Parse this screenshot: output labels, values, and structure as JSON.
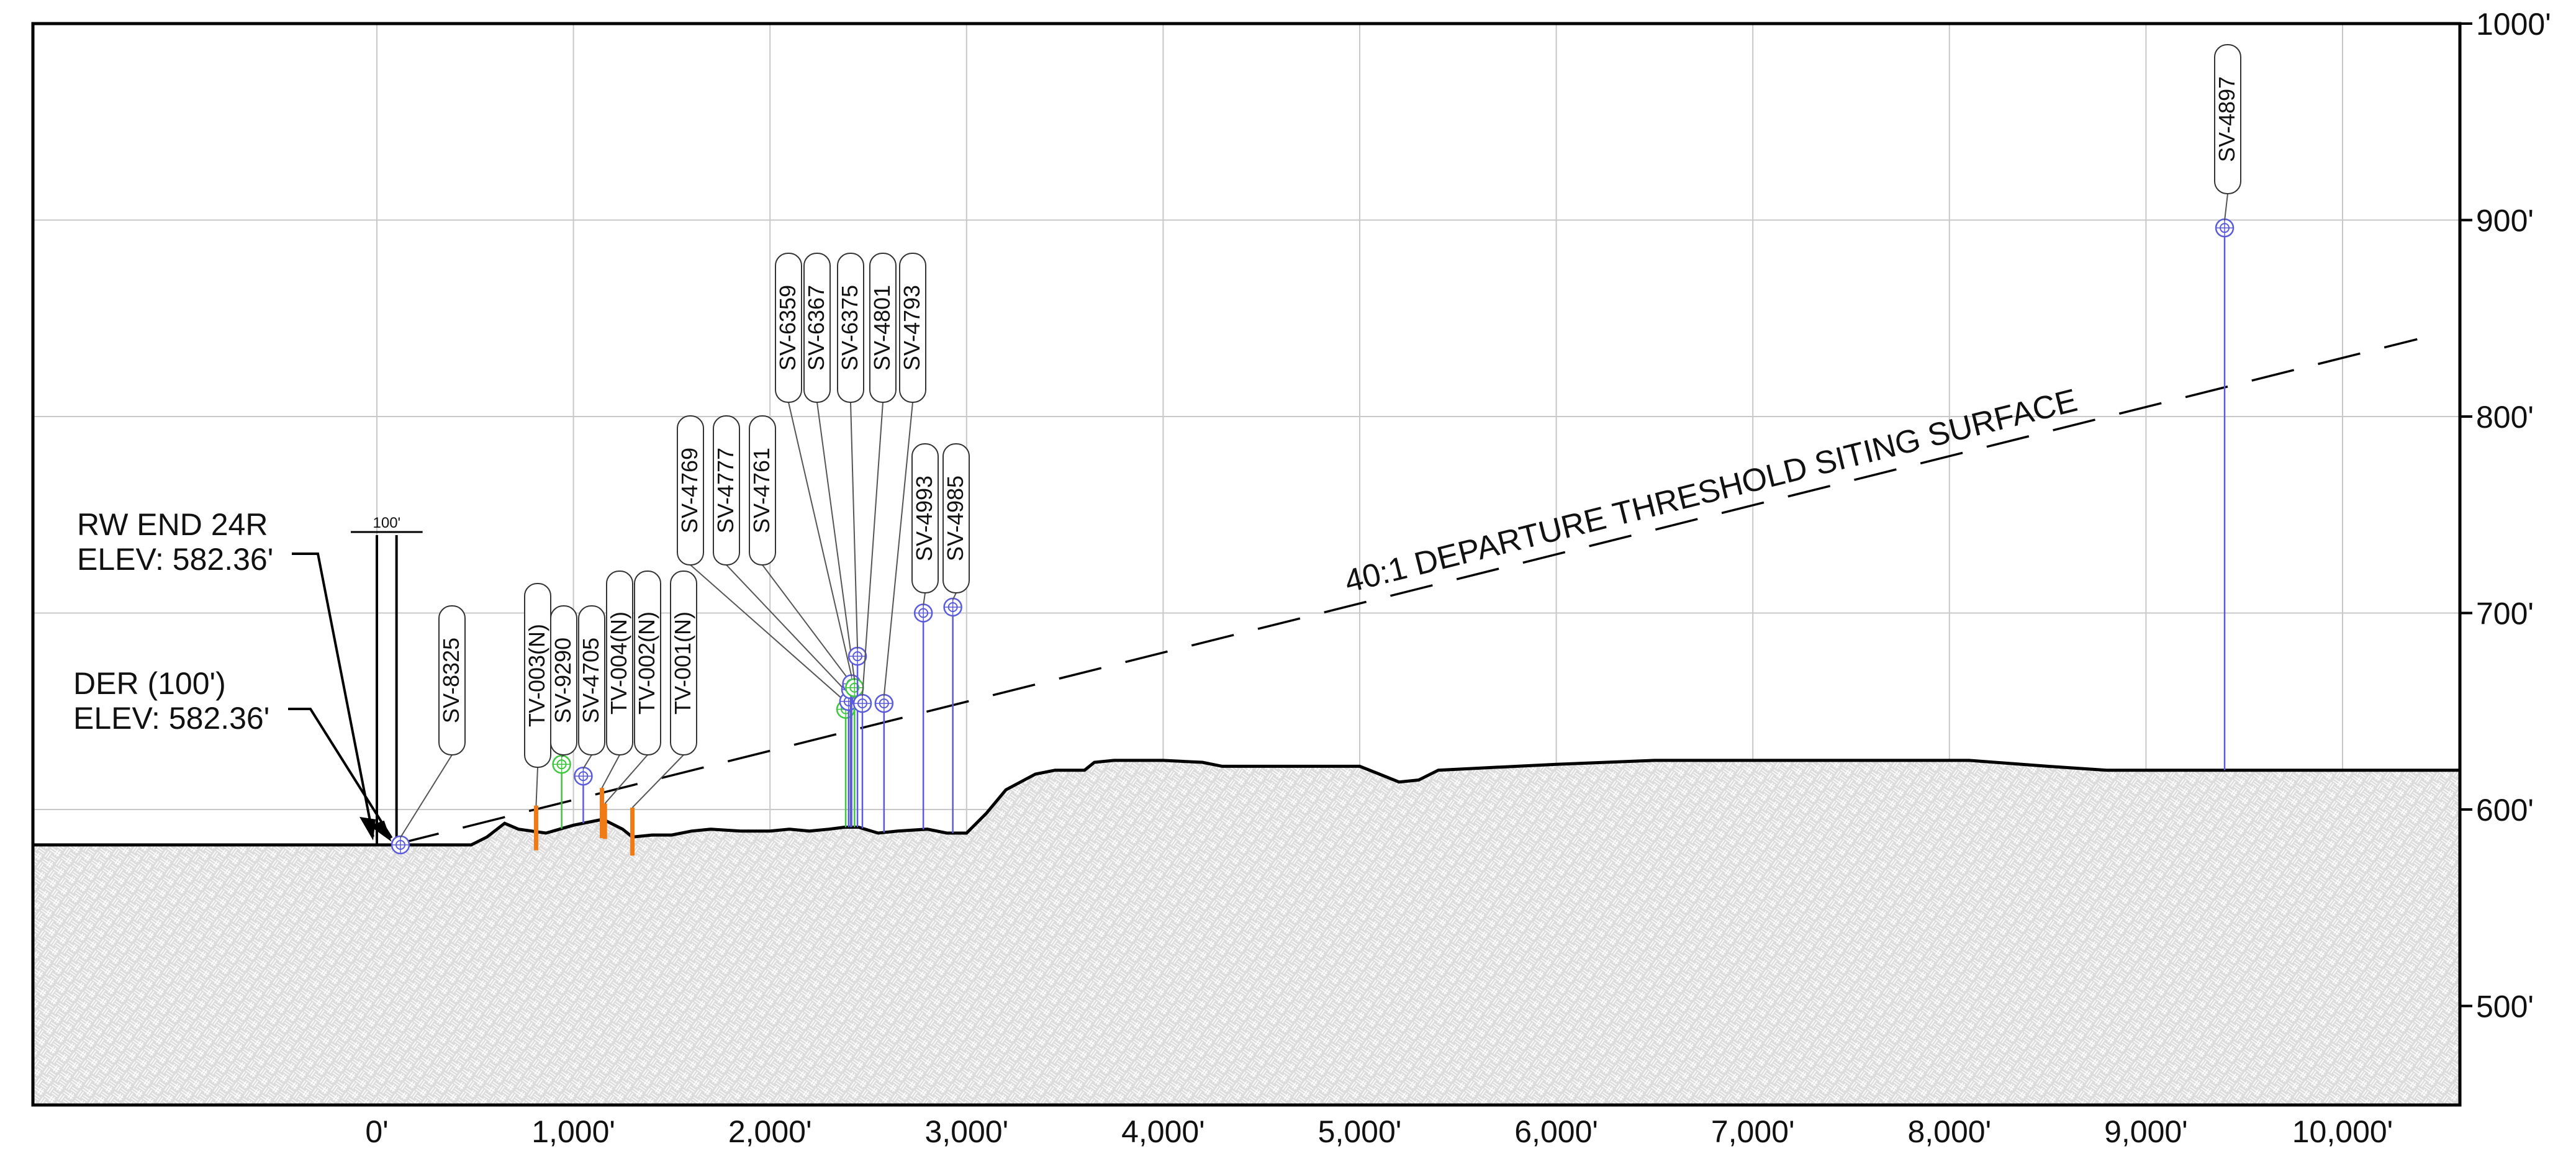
{
  "colors": {
    "frame": "#000000",
    "grid": "#c8c8c8",
    "ground_fill": "#dcdcdc",
    "ground_hatch": "#ffffff",
    "ground_line": "#000000",
    "structure_vegetation": "#5a5adc",
    "tree_vegetation": "#3cc83c",
    "traverse_point": "#f07a14",
    "surface_line": "#000000"
  },
  "chart_data": {
    "type": "line",
    "title": "",
    "xlabel": "",
    "ylabel": "",
    "xlim": [
      -1750,
      10600
    ],
    "ylim": [
      450,
      1000
    ],
    "x_ticks": [
      0,
      1000,
      2000,
      3000,
      4000,
      5000,
      6000,
      7000,
      8000,
      9000,
      10000
    ],
    "x_tick_labels": [
      "0'",
      "1,000'",
      "2,000'",
      "3,000'",
      "4,000'",
      "5,000'",
      "6,000'",
      "7,000'",
      "8,000'",
      "9,000'",
      "10,000'"
    ],
    "y_ticks": [
      500,
      600,
      700,
      800,
      900,
      1000
    ],
    "y_tick_labels": [
      "500'",
      "600'",
      "700'",
      "800'",
      "900'",
      "1000'"
    ],
    "grid": true,
    "ground_profile": {
      "x": [
        -1750,
        0,
        300,
        480,
        560,
        650,
        720,
        860,
        1000,
        1150,
        1250,
        1300,
        1400,
        1500,
        1600,
        1700,
        1850,
        2000,
        2100,
        2200,
        2300,
        2380,
        2450,
        2550,
        2650,
        2800,
        2900,
        3000,
        3100,
        3200,
        3350,
        3450,
        3600,
        3650,
        3750,
        4000,
        4200,
        4300,
        4400,
        4600,
        4800,
        5000,
        5100,
        5200,
        5300,
        5400,
        5600,
        6000,
        6500,
        7000,
        7500,
        8000,
        8100,
        8500,
        8800,
        9000,
        9500,
        10000,
        10600
      ],
      "y": [
        582,
        582,
        582,
        582,
        586,
        593,
        590,
        588,
        592,
        595,
        590,
        586,
        587,
        587,
        589,
        590,
        589,
        589,
        590,
        589,
        590,
        591,
        591,
        588,
        589,
        590,
        588,
        588,
        598,
        610,
        618,
        620,
        620,
        624,
        625,
        625,
        624,
        622,
        622,
        622,
        622,
        622,
        618,
        614,
        615,
        620,
        621,
        623,
        625,
        625,
        625,
        625,
        625,
        622,
        620,
        620,
        620,
        620,
        620
      ]
    },
    "runway_end": {
      "x": 0,
      "elev": 582.36,
      "label": [
        "RW END 24R",
        "ELEV: 582.36'"
      ]
    },
    "der": {
      "x": 100,
      "elev": 582.36,
      "label": [
        "DER (100')",
        "ELEV: 582.36'"
      ]
    },
    "offset_dimension": {
      "value": 100,
      "label": "100'"
    },
    "surface": {
      "label": "40:1 DEPARTURE THRESHOLD SITING SURFACE",
      "slope": 0.025,
      "start_x": 100,
      "start_elev": 582.36,
      "end_x": 10600
    },
    "obstacles": [
      {
        "id": "SV-8325",
        "kind": "structure",
        "x": 120,
        "elev": 582
      },
      {
        "id": "TV-003(N)",
        "kind": "traverse",
        "x": 810,
        "elev": 602
      },
      {
        "id": "SV-9290",
        "kind": "tree",
        "x": 940,
        "elev": 623
      },
      {
        "id": "SV-4705",
        "kind": "structure",
        "x": 1050,
        "elev": 617
      },
      {
        "id": "TV-004(N)",
        "kind": "traverse",
        "x": 1145,
        "elev": 611
      },
      {
        "id": "TV-002(N)",
        "kind": "traverse",
        "x": 1160,
        "elev": 603
      },
      {
        "id": "TV-001(N)",
        "kind": "traverse",
        "x": 1300,
        "elev": 601
      },
      {
        "id": "SV-4769",
        "kind": "tree",
        "x": 2385,
        "elev": 651
      },
      {
        "id": "SV-4777",
        "kind": "structure",
        "x": 2400,
        "elev": 655
      },
      {
        "id": "SV-4761",
        "kind": "structure",
        "x": 2410,
        "elev": 661
      },
      {
        "id": "SV-6359",
        "kind": "structure",
        "x": 2415,
        "elev": 664
      },
      {
        "id": "SV-6367",
        "kind": "tree",
        "x": 2430,
        "elev": 662
      },
      {
        "id": "SV-6375",
        "kind": "structure",
        "x": 2445,
        "elev": 678
      },
      {
        "id": "SV-4801",
        "kind": "structure",
        "x": 2470,
        "elev": 654
      },
      {
        "id": "SV-4793",
        "kind": "structure",
        "x": 2580,
        "elev": 654
      },
      {
        "id": "SV-4993",
        "kind": "structure",
        "x": 2780,
        "elev": 700
      },
      {
        "id": "SV-4985",
        "kind": "structure",
        "x": 2930,
        "elev": 703
      },
      {
        "id": "SV-4897",
        "kind": "structure",
        "x": 9400,
        "elev": 896
      }
    ]
  }
}
